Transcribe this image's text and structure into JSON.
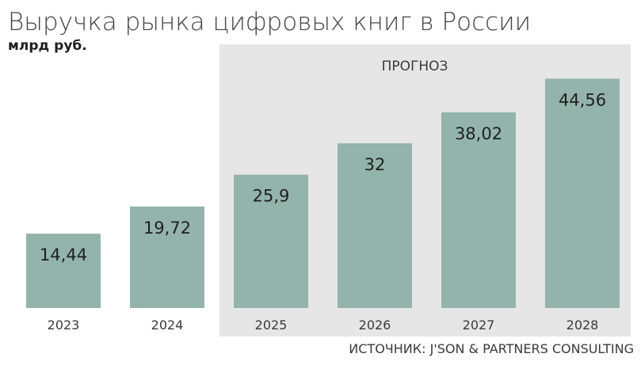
{
  "chart_data": {
    "type": "bar",
    "title": "Выручка рынка цифровых книг в России",
    "subtitle": "млрд руб.",
    "categories": [
      "2023",
      "2024",
      "2025",
      "2026",
      "2027",
      "2028"
    ],
    "values": [
      14.44,
      19.72,
      25.9,
      32,
      38.02,
      44.56
    ],
    "value_labels": [
      "14,44",
      "19,72",
      "25,9",
      "32",
      "38,02",
      "44,56"
    ],
    "forecast": {
      "label": "ПРОГНОЗ",
      "from_category": "2025",
      "to_category": "2028"
    },
    "source": "ИСТОЧНИК: J'SON & PARTNERS CONSULTING",
    "bar_color": "#93b4aa",
    "forecast_background": "#e6e6e6",
    "ylim": [
      0,
      50
    ],
    "grid": false,
    "legend": "none"
  }
}
